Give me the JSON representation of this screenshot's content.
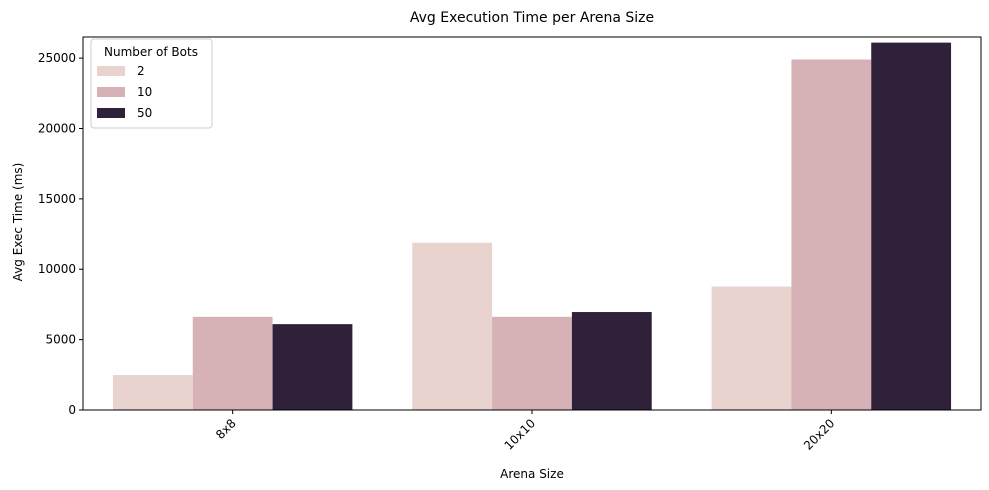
{
  "chart_data": {
    "type": "bar",
    "title": "Avg Execution Time per Arena Size",
    "xlabel": "Arena Size",
    "ylabel": "Avg Exec Time (ms)",
    "categories": [
      "8x8",
      "10x10",
      "20x20"
    ],
    "ylim": [
      0,
      26500
    ],
    "yticks": [
      0,
      5000,
      10000,
      15000,
      20000,
      25000
    ],
    "x_tick_rotation_deg": 45,
    "grid": false,
    "legend": {
      "title": "Number of Bots",
      "placement": "top-left"
    },
    "series": [
      {
        "name": "2",
        "color": "#e8d3cf",
        "values": [
          2480,
          11880,
          8770
        ]
      },
      {
        "name": "10",
        "color": "#d6b1b6",
        "values": [
          6620,
          6620,
          24900
        ]
      },
      {
        "name": "50",
        "color": "#2e2139",
        "values": [
          6100,
          6960,
          26100
        ]
      }
    ]
  }
}
